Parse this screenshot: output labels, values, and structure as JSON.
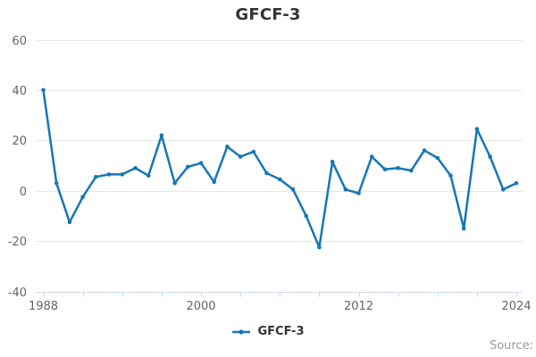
{
  "title": "GFCF-3",
  "legend": {
    "label": "GFCF-3"
  },
  "credits": "Source:",
  "colors": {
    "series": "#1776b6",
    "grid": "#e6e6e6",
    "axis_line": "#ccd6eb",
    "axis_label": "#666666",
    "title_text": "#333333",
    "credits_text": "#999999"
  },
  "chart_data": {
    "type": "line",
    "title": "GFCF-3",
    "xlabel": "",
    "ylabel": "",
    "xlim": [
      1988,
      2024
    ],
    "ylim": [
      -40,
      60
    ],
    "yticks": [
      60,
      40,
      20,
      0,
      -20,
      -40
    ],
    "xtick_labels": [
      1988,
      2000,
      2012,
      2024
    ],
    "x_minor_tick_interval_years": 3,
    "grid": "horizontal-only",
    "legend_position": "bottom-center",
    "series": [
      {
        "name": "GFCF-3",
        "x": [
          1988,
          1989,
          1990,
          1991,
          1992,
          1993,
          1994,
          1995,
          1996,
          1997,
          1998,
          1999,
          2000,
          2001,
          2002,
          2003,
          2004,
          2005,
          2006,
          2007,
          2008,
          2009,
          2010,
          2011,
          2012,
          2013,
          2014,
          2015,
          2016,
          2017,
          2018,
          2019,
          2020,
          2021,
          2022,
          2023,
          2024
        ],
        "values": [
          40,
          3,
          -12.5,
          -2.5,
          5.5,
          6.5,
          6.5,
          9,
          6,
          22,
          3,
          9.5,
          11,
          3.5,
          17.5,
          13.5,
          15.5,
          7,
          4.5,
          0.5,
          -10,
          -22.5,
          11.5,
          0.5,
          -1,
          13.5,
          8.5,
          9,
          8,
          16,
          13,
          6,
          -15,
          24.5,
          13.5,
          0.5,
          3
        ]
      }
    ]
  }
}
